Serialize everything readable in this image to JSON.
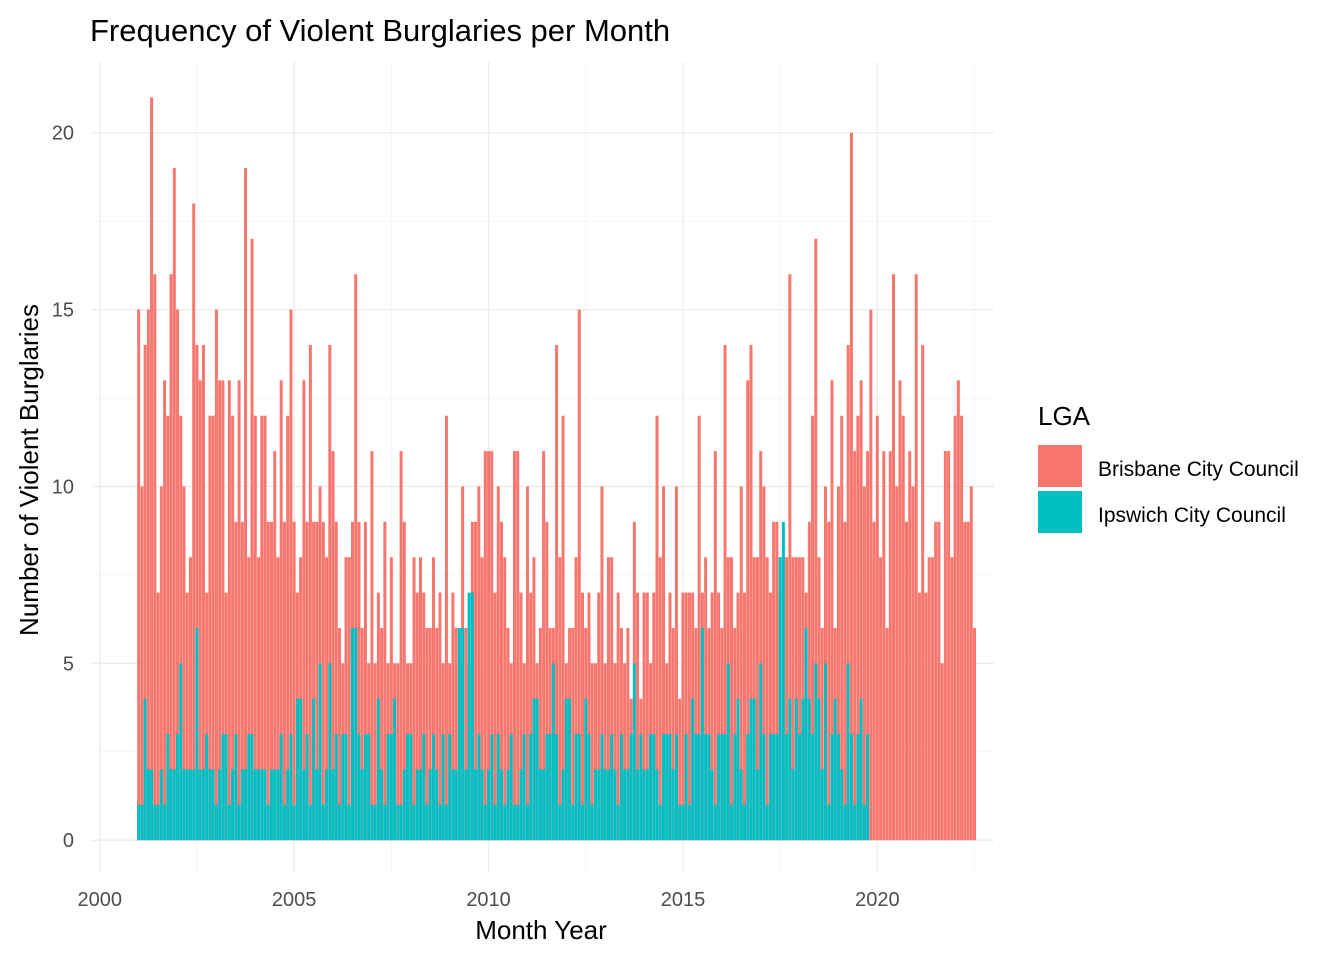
{
  "chart_data": {
    "type": "bar",
    "title": "Frequency of Violent Burglaries per Month",
    "xlabel": "Month Year",
    "ylabel": "Number of Violent Burglaries",
    "x_unit": "year",
    "xlim": [
      1999.8,
      2023.0
    ],
    "ylim": [
      -0.9,
      22.0
    ],
    "xticks": [
      2000,
      2005,
      2010,
      2015,
      2020
    ],
    "yticks": [
      0,
      5,
      10,
      15,
      20
    ],
    "grid": true,
    "legend": {
      "title": "LGA",
      "position": "right",
      "entries": [
        "Brisbane City Council",
        "Ipswich City Council"
      ]
    },
    "series": [
      {
        "name": "Brisbane City Council",
        "color": "#F8766D",
        "x_start": 2001.0,
        "x_step": 0.08333,
        "values": [
          15,
          10,
          14,
          15,
          21,
          16,
          7,
          10,
          13,
          12,
          16,
          19,
          15,
          12,
          10,
          7,
          8,
          18,
          14,
          13,
          14,
          7,
          12,
          12,
          15,
          13,
          13,
          7,
          13,
          12,
          9,
          13,
          9,
          19,
          8,
          17,
          12,
          8,
          12,
          12,
          9,
          9,
          11,
          8,
          13,
          9,
          12,
          15,
          9,
          7,
          8,
          13,
          9,
          14,
          9,
          9,
          10,
          9,
          8,
          14,
          11,
          9,
          6,
          5,
          8,
          8,
          9,
          16,
          9,
          6,
          9,
          5,
          11,
          5,
          7,
          6,
          9,
          5,
          8,
          5,
          5,
          11,
          9,
          5,
          5,
          8,
          7,
          8,
          7,
          6,
          6,
          8,
          6,
          7,
          5,
          12,
          5,
          7,
          6,
          5,
          10,
          6,
          5,
          9,
          9,
          10,
          8,
          11,
          11,
          11,
          7,
          10,
          9,
          8,
          6,
          5,
          11,
          11,
          7,
          5,
          10,
          7,
          8,
          5,
          6,
          11,
          9,
          6,
          6,
          14,
          8,
          12,
          5,
          6,
          6,
          8,
          15,
          7,
          6,
          7,
          5,
          5,
          7,
          10,
          5,
          8,
          8,
          5,
          7,
          6,
          5,
          6,
          4,
          9,
          7,
          4,
          7,
          7,
          5,
          7,
          12,
          8,
          10,
          5,
          7,
          6,
          10,
          4,
          7,
          7,
          7,
          7,
          6,
          12,
          7,
          8,
          6,
          7,
          11,
          7,
          6,
          14,
          8,
          8,
          6,
          7,
          10,
          7,
          13,
          14,
          8,
          8,
          11,
          10,
          8,
          7,
          9,
          9,
          7,
          8,
          8,
          16,
          8,
          8,
          8,
          8,
          7,
          9,
          12,
          17,
          8,
          6,
          10,
          9,
          13,
          6,
          10,
          12,
          9,
          14,
          20,
          11,
          12,
          13,
          10,
          11,
          15,
          9,
          12,
          8,
          11,
          6,
          11,
          16,
          10,
          13,
          12,
          9,
          11,
          10,
          16,
          7,
          14,
          7,
          8,
          8,
          9,
          9,
          5,
          11,
          11,
          8,
          12,
          13,
          12,
          9,
          9,
          10,
          6
        ]
      },
      {
        "name": "Ipswich City Council",
        "color": "#00BFC4",
        "x_start": 2001.0,
        "x_step": 0.08333,
        "values": [
          1,
          1,
          4,
          2,
          2,
          1,
          1,
          2,
          1,
          3,
          2,
          2,
          3,
          5,
          2,
          2,
          2,
          2,
          6,
          2,
          2,
          3,
          2,
          2,
          1,
          2,
          3,
          3,
          1,
          2,
          3,
          1,
          2,
          2,
          3,
          3,
          2,
          2,
          2,
          2,
          1,
          2,
          2,
          2,
          3,
          1,
          2,
          3,
          1,
          4,
          4,
          2,
          3,
          1,
          4,
          2,
          5,
          1,
          2,
          5,
          2,
          3,
          1,
          3,
          3,
          1,
          6,
          6,
          3,
          2,
          3,
          3,
          1,
          1,
          4,
          2,
          1,
          3,
          3,
          4,
          1,
          1,
          2,
          3,
          3,
          1,
          2,
          2,
          3,
          1,
          2,
          3,
          2,
          1,
          3,
          1,
          3,
          2,
          2,
          6,
          6,
          2,
          7,
          7,
          2,
          3,
          2,
          1,
          2,
          3,
          1,
          3,
          2,
          1,
          2,
          3,
          1,
          1,
          2,
          3,
          1,
          3,
          4,
          4,
          2,
          2,
          3,
          3,
          5,
          3,
          1,
          2,
          4,
          4,
          1,
          3,
          3,
          1,
          4,
          3,
          1,
          2,
          2,
          3,
          2,
          2,
          3,
          2,
          1,
          3,
          2,
          2,
          3,
          5,
          2,
          3,
          2,
          2,
          3,
          3,
          2,
          1,
          3,
          3,
          3,
          2,
          3,
          1,
          1,
          3,
          1,
          4,
          3,
          3,
          6,
          3,
          3,
          2,
          1,
          3,
          3,
          3,
          5,
          1,
          3,
          4,
          2,
          1,
          3,
          4,
          4,
          2,
          5,
          3,
          1,
          3,
          3,
          3,
          8,
          9,
          3,
          4,
          2,
          4,
          3,
          4,
          6,
          4,
          3,
          5,
          4,
          2,
          5,
          1,
          3,
          4,
          3,
          2,
          1,
          5,
          3,
          1,
          3,
          4,
          1,
          3
        ]
      }
    ]
  }
}
